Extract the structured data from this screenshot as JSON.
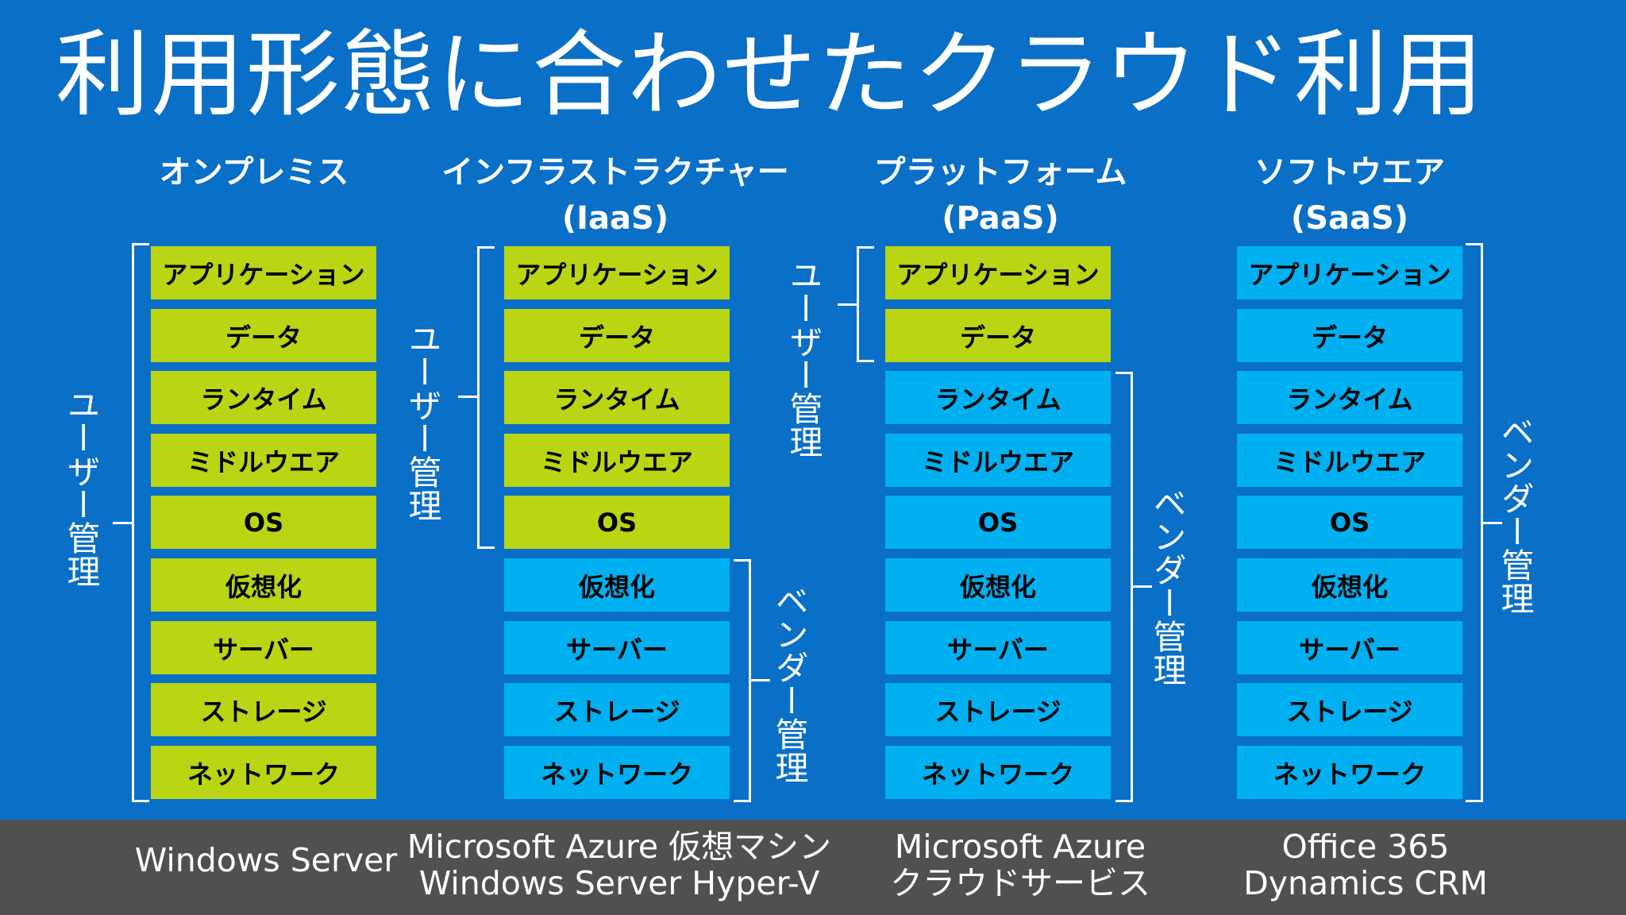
{
  "title": "利用形態に合わせたクラウド利用",
  "columns": [
    {
      "heading": "オンプレミス",
      "subheading": "",
      "footer_line1": "Windows Server",
      "footer_line2": "",
      "layers": [
        "アプリケーション",
        "データ",
        "ランタイム",
        "ミドルウエア",
        "OS",
        "仮想化",
        "サーバー",
        "ストレージ",
        "ネットワーク"
      ],
      "user_label": "ユーザー管理",
      "vendor_label": ""
    },
    {
      "heading": "インフラストラクチャー",
      "subheading": "(IaaS)",
      "footer_line1": "Microsoft Azure 仮想マシン",
      "footer_line2": "Windows Server Hyper-V",
      "layers": [
        "アプリケーション",
        "データ",
        "ランタイム",
        "ミドルウエア",
        "OS",
        "仮想化",
        "サーバー",
        "ストレージ",
        "ネットワーク"
      ],
      "user_label": "ユーザー管理",
      "vendor_label": "ベンダー管理"
    },
    {
      "heading": "プラットフォーム",
      "subheading": "(PaaS)",
      "footer_line1": "Microsoft Azure",
      "footer_line2": "クラウドサービス",
      "layers": [
        "アプリケーション",
        "データ",
        "ランタイム",
        "ミドルウエア",
        "OS",
        "仮想化",
        "サーバー",
        "ストレージ",
        "ネットワーク"
      ],
      "user_label": "ユーザー管理",
      "vendor_label": "ベンダー管理"
    },
    {
      "heading": "ソフトウエア",
      "subheading": "(SaaS)",
      "footer_line1": "Office 365",
      "footer_line2": "Dynamics CRM",
      "layers": [
        "アプリケーション",
        "データ",
        "ランタイム",
        "ミドルウエア",
        "OS",
        "仮想化",
        "サーバー",
        "ストレージ",
        "ネットワーク"
      ],
      "user_label": "",
      "vendor_label": "ベンダー管理"
    }
  ],
  "user_managed_counts": [
    9,
    5,
    2,
    0
  ],
  "colors": {
    "background": "#0a6fc7",
    "user_managed": "#b9d514",
    "vendor_managed": "#00b0f0",
    "footer": "#505050"
  }
}
